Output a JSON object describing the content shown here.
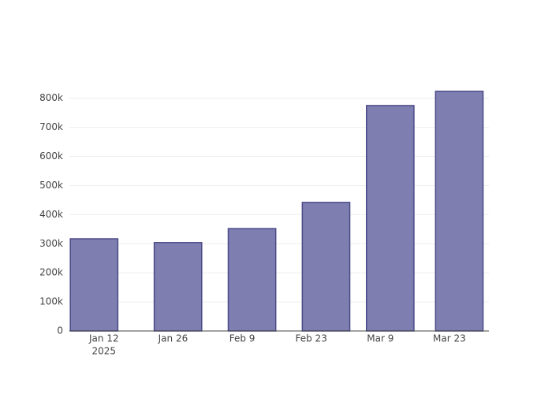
{
  "chart_data": {
    "type": "bar",
    "x": [
      "2025-01-10",
      "2025-01-27",
      "2025-02-11",
      "2025-02-26",
      "2025-03-11",
      "2025-03-25"
    ],
    "values": [
      317000,
      304000,
      352000,
      442000,
      775000,
      824000
    ],
    "color": "#7f7eb0",
    "edge_color": "#4a4a88",
    "xlim": [
      "2025-01-05",
      "2025-03-31"
    ],
    "xticks": [
      {
        "value": "2025-01-12",
        "label": "Jan 12"
      },
      {
        "value": "2025-01-26",
        "label": "Jan 26"
      },
      {
        "value": "2025-02-09",
        "label": "Feb 9"
      },
      {
        "value": "2025-02-23",
        "label": "Feb 23"
      },
      {
        "value": "2025-03-09",
        "label": "Mar 9"
      },
      {
        "value": "2025-03-23",
        "label": "Mar 23"
      }
    ],
    "x_year_label": "2025",
    "ylim": [
      0,
      867000
    ],
    "yticks": [
      0,
      {
        "value": 100000,
        "label": "100k"
      },
      {
        "value": 200000,
        "label": "200k"
      },
      {
        "value": 300000,
        "label": "300k"
      },
      {
        "value": 400000,
        "label": "400k"
      },
      {
        "value": 500000,
        "label": "500k"
      },
      {
        "value": 600000,
        "label": "600k"
      },
      {
        "value": 700000,
        "label": "700k"
      },
      {
        "value": 800000,
        "label": "800k"
      }
    ],
    "grid": true
  }
}
